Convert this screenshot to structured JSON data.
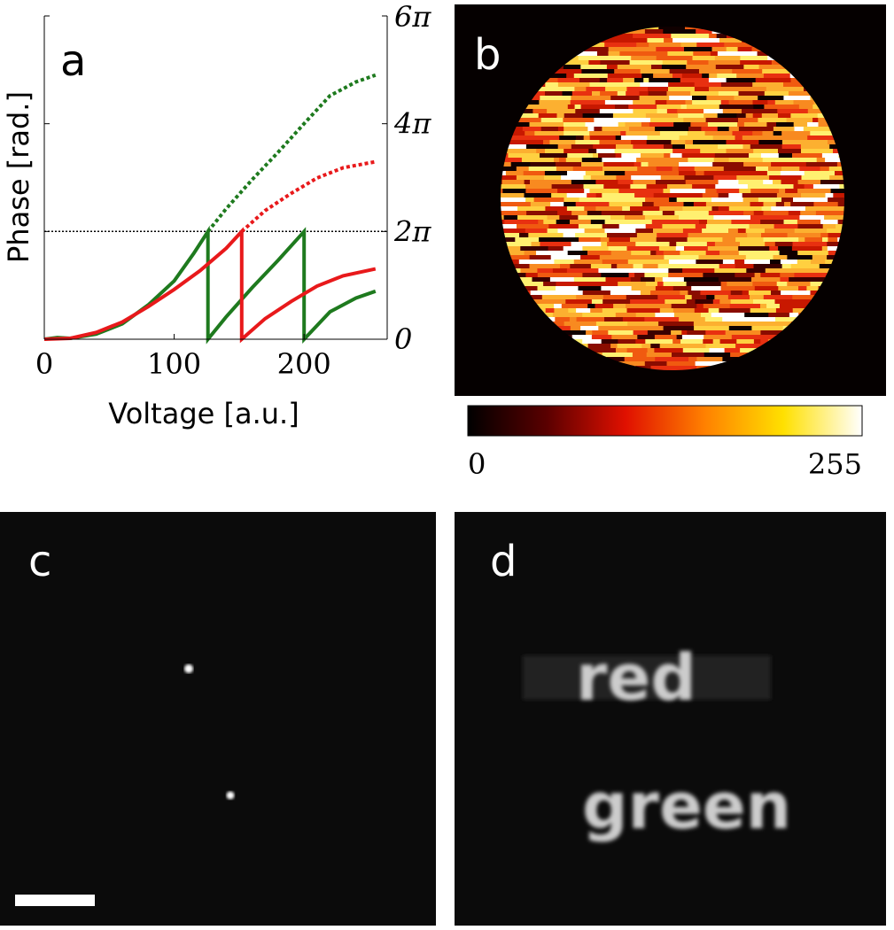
{
  "chart_data": [
    {
      "type": "line",
      "panel_label": "a",
      "xlabel": "Voltage [a.u.]",
      "ylabel": "Phase [rad.]",
      "xlim": [
        0,
        264
      ],
      "xticks": [
        0,
        100,
        200
      ],
      "ylim": [
        0,
        18.85
      ],
      "yticks": [
        0,
        {
          "value": 6.283,
          "label": "2π"
        },
        {
          "value": 12.566,
          "label": "4π"
        },
        {
          "value": 18.85,
          "label": "6π"
        }
      ],
      "series": [
        {
          "color": "#000000",
          "dash": "dotted-thin",
          "x": [
            0,
            264
          ],
          "values": [
            6.283,
            6.283
          ]
        },
        {
          "color": "#1e7a1e",
          "dash": "dotted",
          "x": [
            126,
            140,
            160,
            180,
            200,
            220,
            240,
            255
          ],
          "values": [
            6.28,
            7.6,
            9.3,
            10.9,
            12.57,
            14.2,
            15.0,
            15.4
          ]
        },
        {
          "color": "#e8191b",
          "dash": "dotted",
          "x": [
            152,
            170,
            190,
            210,
            230,
            255
          ],
          "values": [
            6.28,
            7.5,
            8.5,
            9.4,
            10.0,
            10.35
          ]
        },
        {
          "color": "#1e7a1e",
          "dash": "solid",
          "x": [
            0,
            10,
            20,
            40,
            60,
            80,
            100,
            115,
            126,
            126,
            140,
            160,
            180,
            200,
            200,
            220,
            240,
            255
          ],
          "values": [
            0,
            0.1,
            0.05,
            0.3,
            0.9,
            2.0,
            3.4,
            5.0,
            6.28,
            0,
            1.3,
            3.0,
            4.6,
            6.28,
            0,
            1.6,
            2.4,
            2.8
          ]
        },
        {
          "color": "#e8191b",
          "dash": "solid",
          "x": [
            0,
            20,
            40,
            60,
            80,
            100,
            120,
            140,
            152,
            152,
            170,
            190,
            210,
            230,
            255
          ],
          "values": [
            0,
            0.05,
            0.4,
            1.0,
            1.9,
            2.9,
            4.0,
            5.3,
            6.28,
            0,
            1.2,
            2.2,
            3.1,
            3.7,
            4.1
          ]
        }
      ]
    },
    {
      "type": "phase-map",
      "panel_label": "b",
      "clim": [
        0,
        255
      ],
      "cticks": [
        0,
        255
      ]
    },
    {
      "type": "spots",
      "panel_label": "c"
    },
    {
      "type": "text-image",
      "panel_label": "d",
      "image_text": [
        "red",
        "green"
      ]
    }
  ]
}
